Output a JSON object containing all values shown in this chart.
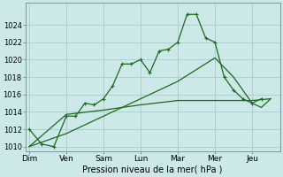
{
  "xlabel": "Pression niveau de la mer( hPa )",
  "background_color": "#cce8e8",
  "grid_color": "#aacccc",
  "line_color": "#1a6b1a",
  "day_labels": [
    "Dim",
    "Ven",
    "Sam",
    "Lun",
    "Mar",
    "Mer",
    "Jeu"
  ],
  "day_positions": [
    0,
    2,
    4,
    6,
    8,
    10,
    12
  ],
  "ylim": [
    1009.5,
    1026.5
  ],
  "yticks": [
    1010,
    1012,
    1014,
    1016,
    1018,
    1020,
    1022,
    1024
  ],
  "xlim": [
    -0.2,
    13.5
  ],
  "series1_x": [
    0,
    0.67,
    1.33,
    2,
    2.5,
    3,
    3.5,
    4,
    4.5,
    5,
    5.5,
    6,
    6.5,
    7,
    7.5,
    8,
    8.5,
    9,
    9.5,
    10,
    10.5,
    11,
    11.5,
    12,
    12.5
  ],
  "series1_y": [
    1012,
    1010.3,
    1010,
    1013.5,
    1013.5,
    1015,
    1014.8,
    1015.5,
    1017,
    1019.5,
    1019.5,
    1020,
    1018.5,
    1021,
    1021.2,
    1022,
    1025.2,
    1025.2,
    1022.5,
    1022,
    1018,
    1016.5,
    1015.5,
    1015,
    1015.5
  ],
  "series2_x": [
    0,
    2,
    4,
    6,
    8,
    10,
    12,
    13
  ],
  "series2_y": [
    1010,
    1013.7,
    1014.2,
    1014.8,
    1015.3,
    1015.3,
    1015.3,
    1015.5
  ],
  "series3_x": [
    0,
    2,
    4,
    6,
    8,
    10,
    11,
    12,
    12.5,
    13
  ],
  "series3_y": [
    1010,
    1011.5,
    1013.5,
    1015.5,
    1017.5,
    1020.2,
    1018,
    1015,
    1014.5,
    1015.5
  ]
}
